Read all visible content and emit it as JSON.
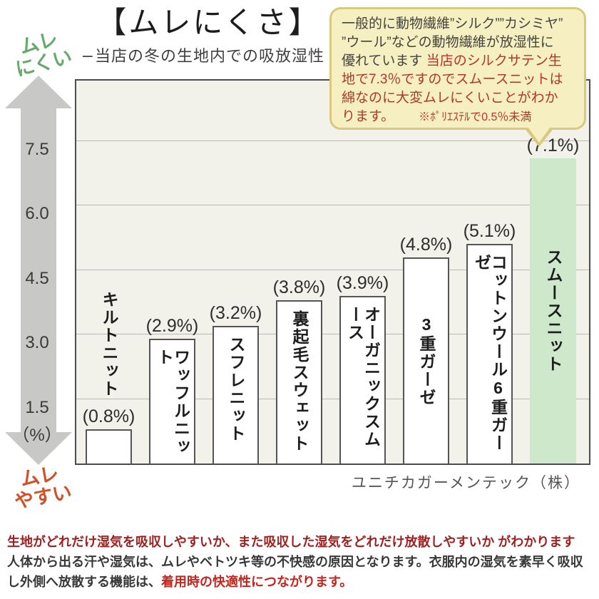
{
  "header": {
    "title": "【ムレにくさ】",
    "subtitle": "−当店の冬の生地内での吸放湿性 -"
  },
  "axis": {
    "top_label_line1": "ムレ",
    "top_label_line2": "にくい",
    "bottom_label_line1": "ムレ",
    "bottom_label_line2": "やすい",
    "unit_label": "（%）"
  },
  "bubble": {
    "lines": [
      [
        {
          "text": "一般的に動物繊維”シルク””カシミヤ”",
          "style": "dark"
        }
      ],
      [
        {
          "text": "”ウール”などの動物繊維が放湿性に",
          "style": "dark"
        }
      ],
      [
        {
          "text": "優れています ",
          "style": "dark"
        },
        {
          "text": "当店のシルクサテン生",
          "style": "red"
        }
      ],
      [
        {
          "text": "地で7.3％ですのでスムースニットは",
          "style": "red"
        }
      ],
      [
        {
          "text": "綿なのに大変ムレにくいことがわか",
          "style": "red"
        }
      ],
      [
        {
          "text": "ります。",
          "style": "red"
        },
        {
          "text": "※ﾎﾟﾘｴｽﾃﾙで0.5％未満",
          "style": "red-note"
        }
      ]
    ],
    "background": "#f5efc1",
    "border_color": "#d8c97e"
  },
  "chart_data": {
    "type": "bar",
    "title": "【ムレにくさ】",
    "subtitle": "−当店の冬の生地内での吸放湿性 -",
    "ylabel": "（%）",
    "ylim": [
      0,
      8.2
    ],
    "grid": true,
    "yticks": [
      {
        "value": 7.5,
        "label": "7.5"
      },
      {
        "value": 6.0,
        "label": "6.0"
      },
      {
        "value": 4.5,
        "label": "4.5"
      },
      {
        "value": 3.0,
        "label": "3.0"
      },
      {
        "value": 1.5,
        "label": "1.5"
      }
    ],
    "categories": [
      "キルトニット",
      "ワッフルニット",
      "スフレニット",
      "裏起毛スウェット",
      "オーガニックスムース",
      "3重ガーゼ",
      "コットンウール6重ガーゼ",
      "スムースニット"
    ],
    "values": [
      0.8,
      2.9,
      3.2,
      3.8,
      3.9,
      4.8,
      5.1,
      7.1
    ],
    "bars": [
      {
        "name": "キルトニット",
        "value": 0.8,
        "value_label": "(0.8%)",
        "name_label_pos": "above",
        "highlight": false
      },
      {
        "name": "ワッフルニット",
        "value": 2.9,
        "value_label": "(2.9%)",
        "name_label_pos": "inside-top",
        "highlight": false
      },
      {
        "name": "スフレニット",
        "value": 3.2,
        "value_label": "(3.2%)",
        "name_label_pos": "inside-top",
        "highlight": false
      },
      {
        "name": "裏起毛スウェット",
        "value": 3.8,
        "value_label": "(3.8%)",
        "name_label_pos": "inside-top",
        "highlight": false
      },
      {
        "name": "オーガニックスムース",
        "value": 3.9,
        "value_label": "(3.9%)",
        "name_label_pos": "inside-top",
        "highlight": false
      },
      {
        "name": "3重ガーゼ",
        "value": 4.8,
        "value_label": "(4.8%)",
        "name_label_pos": "inside-center",
        "highlight": false
      },
      {
        "name": "コットンウール6重ガーゼ",
        "value": 5.1,
        "value_label": "(5.1%)",
        "name_label_pos": "inside-top",
        "highlight": false
      },
      {
        "name": "スムースニット",
        "value": 7.1,
        "value_label": "(7.1%)",
        "name_label_pos": "inside-center",
        "highlight": true
      }
    ],
    "bar_color": "#ffffff",
    "bar_border_color": "#555555",
    "highlight_color": "#cde8cb",
    "plot_background": "#f2f1ea",
    "source": "ユニチカガーメンテック（株）"
  },
  "footer": {
    "lines": [
      [
        {
          "text": "生地がどれだけ湿気を吸収しやすいか、また吸収した湿気をどれだけ放散しやすいか がわかります",
          "style": "dark-red"
        }
      ],
      [
        {
          "text": "人体から出る汗や湿気は、ムレやベトツキ等の不快感の原因となります。衣服内の湿気を素早く吸収",
          "style": "gray"
        }
      ],
      [
        {
          "text": "し外側へ放散する機能は、",
          "style": "gray"
        },
        {
          "text": "着用時の快適性につながります。",
          "style": "bright-red"
        }
      ]
    ]
  },
  "colors": {
    "axis_top_label": "#67a96b",
    "axis_bottom_label": "#cf5128",
    "arrow": "#c8c8c6",
    "footer_dark_red": "#9e2121",
    "footer_bright_red": "#c3251c",
    "bubble_red": "#b2372b"
  }
}
